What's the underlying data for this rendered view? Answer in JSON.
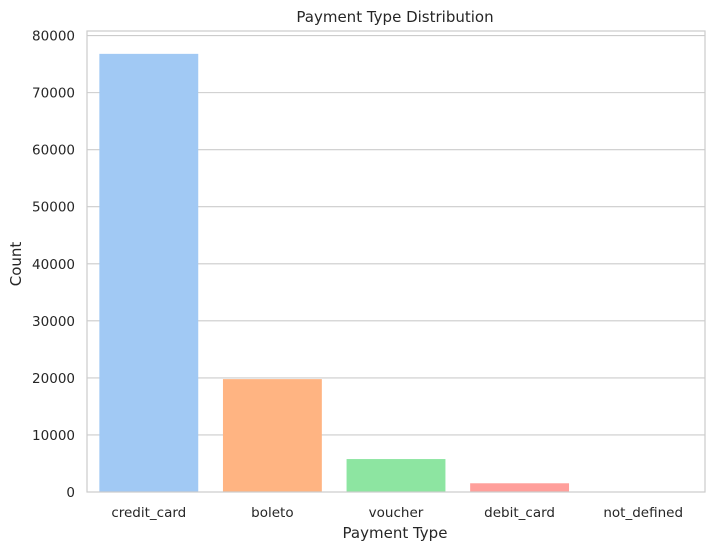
{
  "chart_data": {
    "type": "bar",
    "title": "Payment Type Distribution",
    "xlabel": "Payment Type",
    "ylabel": "Count",
    "categories": [
      "credit_card",
      "boleto",
      "voucher",
      "debit_card",
      "not_defined"
    ],
    "values": [
      76795,
      19784,
      5775,
      1529,
      3
    ],
    "colors": [
      "#a1c9f4",
      "#ffb482",
      "#8de5a1",
      "#ff9f9b",
      "#d0bbff"
    ],
    "ylim": [
      0,
      80800
    ],
    "yticks": [
      0,
      10000,
      20000,
      30000,
      40000,
      50000,
      60000,
      70000,
      80000
    ],
    "grid": "horizontal",
    "legend": "none"
  }
}
